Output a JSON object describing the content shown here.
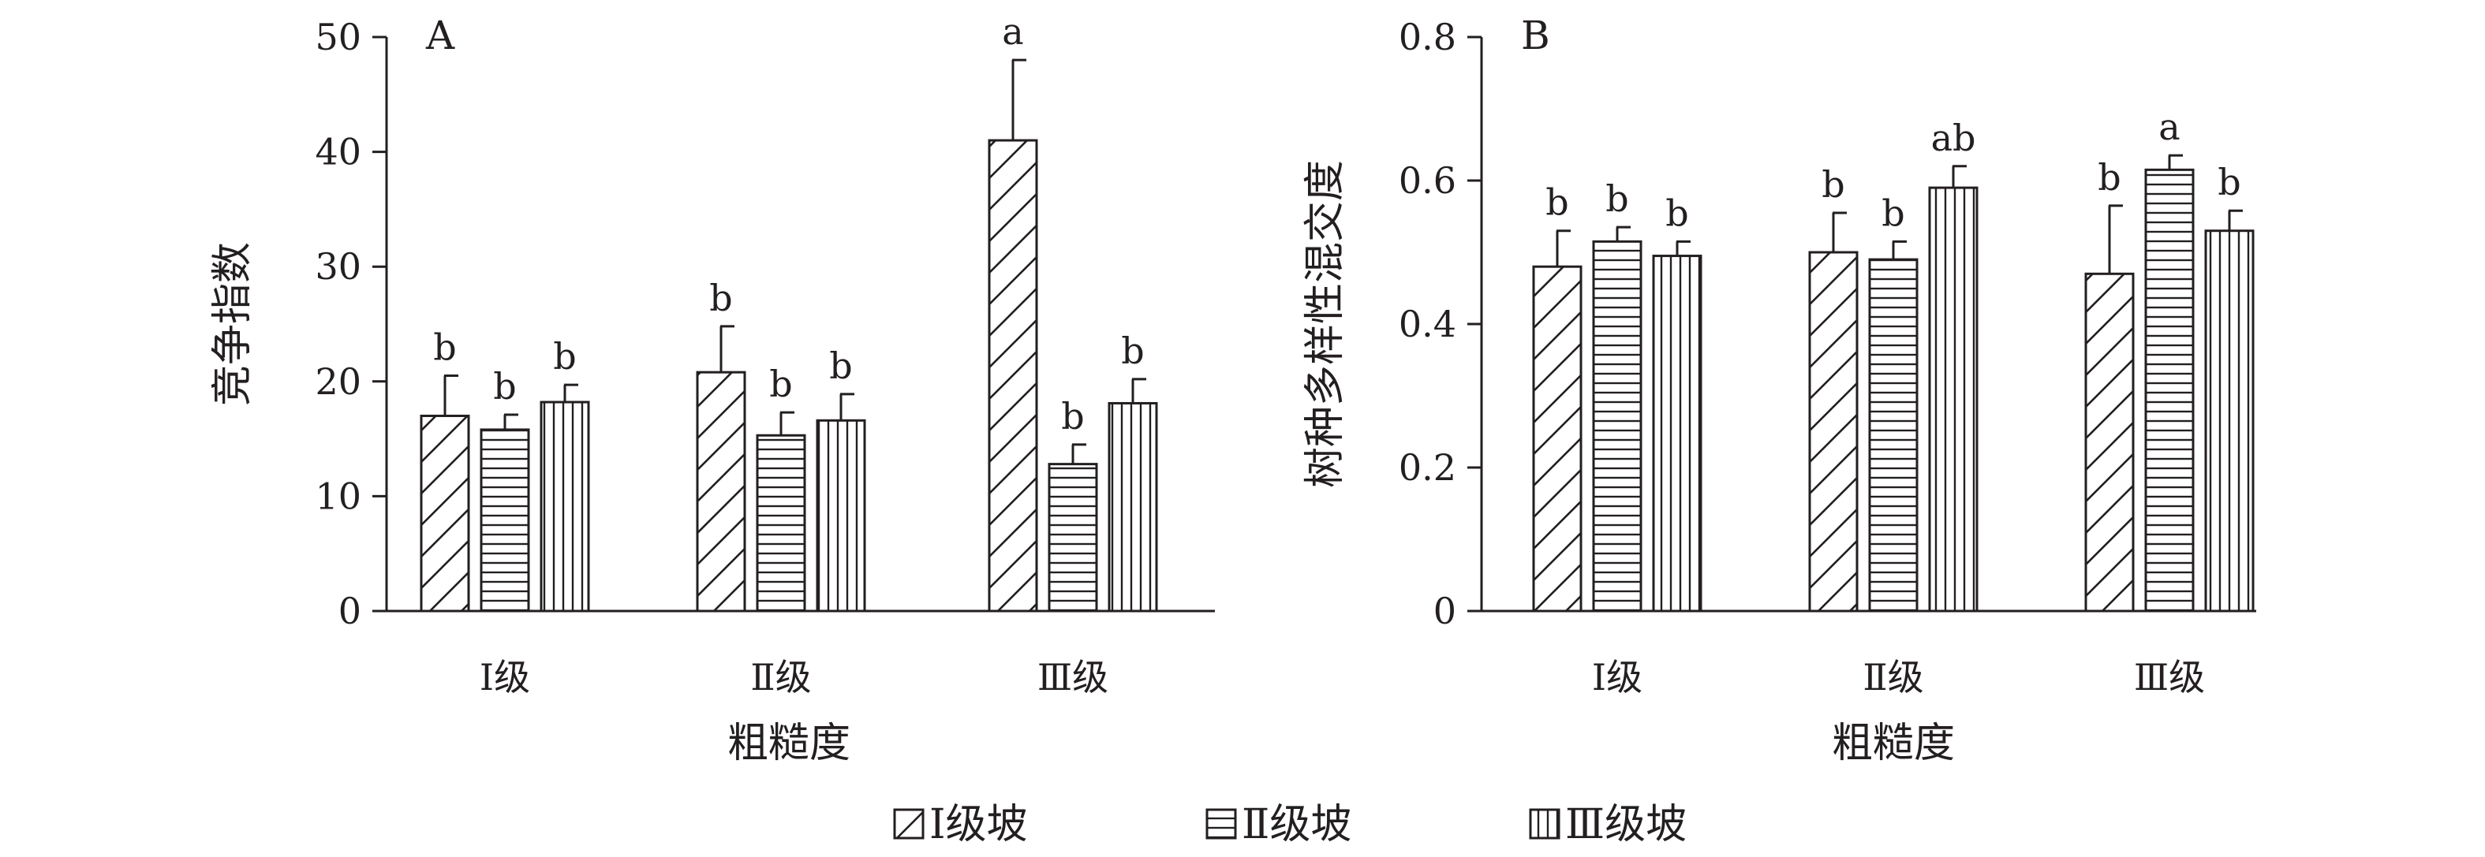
{
  "chart_data": [
    {
      "type": "bar",
      "panel_label": "A",
      "categories": [
        "Ⅰ级",
        "Ⅱ级",
        "Ⅲ级"
      ],
      "xlabel": "粗糙度",
      "ylabel": "竞争指数",
      "ylim": [
        0,
        50
      ],
      "yticks": [
        "0",
        "10",
        "20",
        "30",
        "40",
        "50"
      ],
      "series": [
        {
          "name": "Ⅰ级坡",
          "pattern": "diagonal",
          "values": [
            17.0,
            20.8,
            41.0
          ],
          "errors": [
            3.5,
            4.0,
            7.0
          ],
          "labels": [
            "b",
            "b",
            "a"
          ]
        },
        {
          "name": "Ⅱ级坡",
          "pattern": "horizontal",
          "values": [
            15.8,
            15.3,
            12.8
          ],
          "errors": [
            1.3,
            2.0,
            1.7
          ],
          "labels": [
            "b",
            "b",
            "b"
          ]
        },
        {
          "name": "Ⅲ级坡",
          "pattern": "vertical",
          "values": [
            18.2,
            16.6,
            18.1
          ],
          "errors": [
            1.5,
            2.3,
            2.1
          ],
          "labels": [
            "b",
            "b",
            "b"
          ]
        }
      ]
    },
    {
      "type": "bar",
      "panel_label": "B",
      "categories": [
        "Ⅰ级",
        "Ⅱ级",
        "Ⅲ级"
      ],
      "xlabel": "粗糙度",
      "ylabel": "树种多样性混交度",
      "ylim": [
        0,
        0.8
      ],
      "yticks": [
        "0",
        "0.2",
        "0.4",
        "0.6",
        "0.8"
      ],
      "series": [
        {
          "name": "Ⅰ级坡",
          "pattern": "diagonal",
          "values": [
            0.48,
            0.5,
            0.47
          ],
          "errors": [
            0.05,
            0.055,
            0.095
          ],
          "labels": [
            "b",
            "b",
            "b"
          ]
        },
        {
          "name": "Ⅱ级坡",
          "pattern": "horizontal",
          "values": [
            0.515,
            0.49,
            0.615
          ],
          "errors": [
            0.02,
            0.025,
            0.02
          ],
          "labels": [
            "b",
            "b",
            "a"
          ]
        },
        {
          "name": "Ⅲ级坡",
          "pattern": "vertical",
          "values": [
            0.495,
            0.59,
            0.53
          ],
          "errors": [
            0.02,
            0.03,
            0.028
          ],
          "labels": [
            "b",
            "ab",
            "b"
          ]
        }
      ]
    }
  ],
  "legend": {
    "items": [
      {
        "label": "Ⅰ级坡",
        "pattern": "diagonal"
      },
      {
        "label": "Ⅱ级坡",
        "pattern": "horizontal"
      },
      {
        "label": "Ⅲ级坡",
        "pattern": "vertical"
      }
    ]
  }
}
